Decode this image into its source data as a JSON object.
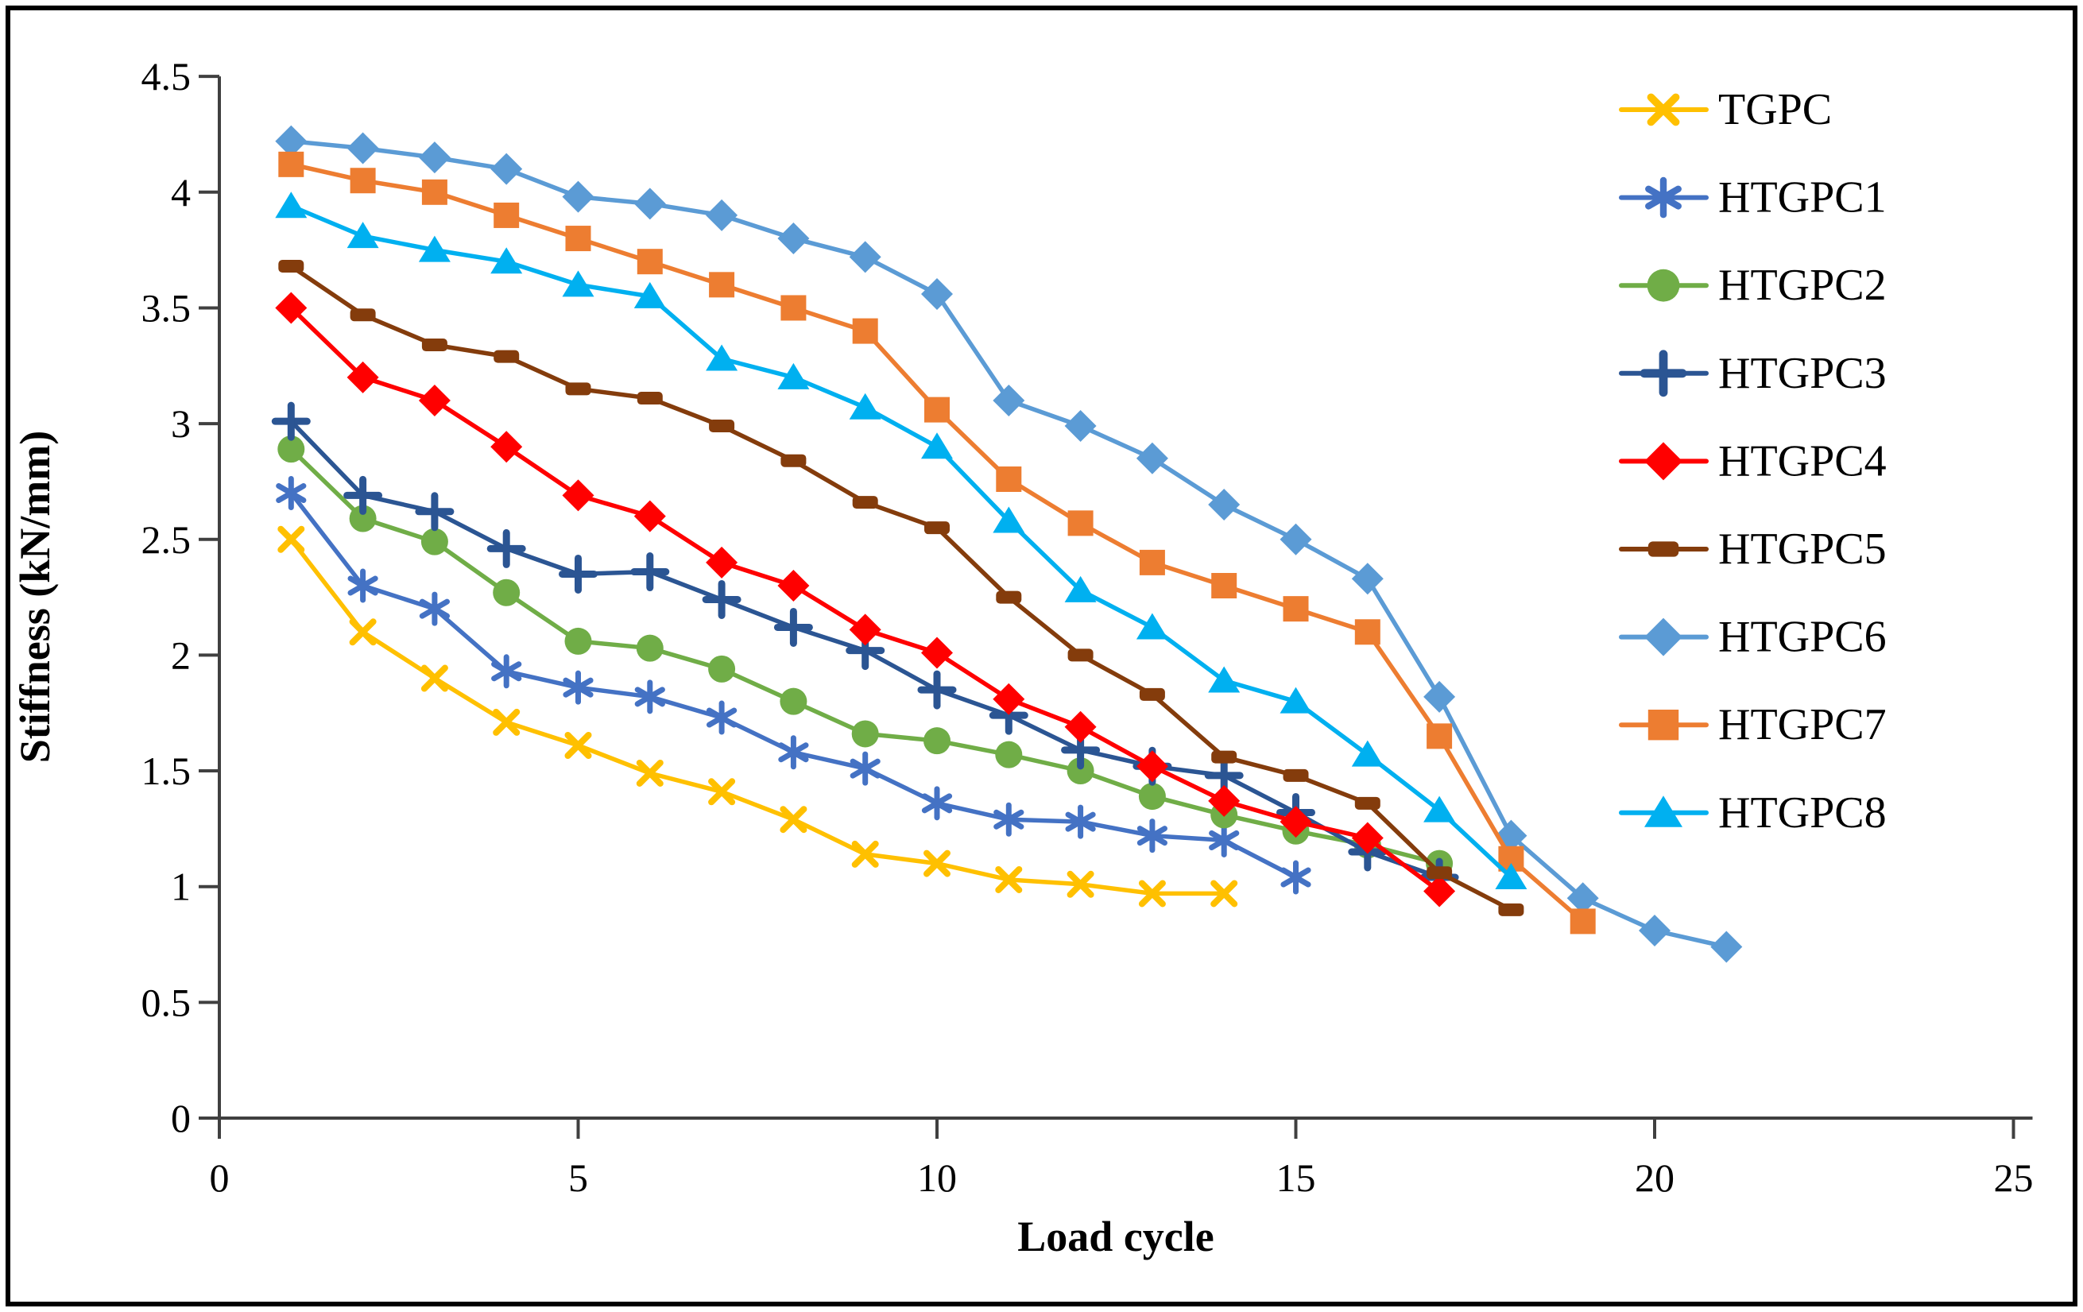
{
  "figure": {
    "background_color": "#ffffff",
    "border_color": "#000000",
    "axis_color": "#404040"
  },
  "chart_data": {
    "type": "line",
    "title": "",
    "xlabel": "Load cycle",
    "ylabel": "Stiffness (kN/mm)",
    "xlim": [
      0,
      25
    ],
    "ylim": [
      0,
      4.5
    ],
    "xticks": [
      0,
      5,
      10,
      15,
      20,
      25
    ],
    "xtick_labels": [
      "0",
      "5",
      "10",
      "15",
      "20",
      "25"
    ],
    "yticks": [
      0,
      0.5,
      1,
      1.5,
      2,
      2.5,
      3,
      3.5,
      4,
      4.5
    ],
    "ytick_labels": [
      "0",
      "0.5",
      "1",
      "1.5",
      "2",
      "2.5",
      "3",
      "3.5",
      "4",
      "4.5"
    ],
    "grid": false,
    "legend_position": "right",
    "series": [
      {
        "name": "TGPC",
        "color": "#FFC000",
        "marker": "x",
        "x": [
          1,
          2,
          3,
          4,
          5,
          6,
          7,
          8,
          9,
          10,
          11,
          12,
          13,
          14
        ],
        "y": [
          2.5,
          2.1,
          1.9,
          1.71,
          1.61,
          1.49,
          1.41,
          1.29,
          1.14,
          1.1,
          1.03,
          1.01,
          0.97,
          0.97
        ]
      },
      {
        "name": "HTGPC1",
        "color": "#4472C4",
        "marker": "asterisk",
        "x": [
          1,
          2,
          3,
          4,
          5,
          6,
          7,
          8,
          9,
          10,
          11,
          12,
          13,
          14,
          15
        ],
        "y": [
          2.7,
          2.3,
          2.2,
          1.93,
          1.86,
          1.82,
          1.73,
          1.58,
          1.51,
          1.36,
          1.29,
          1.28,
          1.22,
          1.2,
          1.04
        ]
      },
      {
        "name": "HTGPC2",
        "color": "#70AD47",
        "marker": "circle",
        "x": [
          1,
          2,
          3,
          4,
          5,
          6,
          7,
          8,
          9,
          10,
          11,
          12,
          13,
          14,
          15,
          16,
          17
        ],
        "y": [
          2.89,
          2.59,
          2.49,
          2.27,
          2.06,
          2.03,
          1.94,
          1.8,
          1.66,
          1.63,
          1.57,
          1.5,
          1.39,
          1.31,
          1.24,
          1.18,
          1.1
        ]
      },
      {
        "name": "HTGPC3",
        "color": "#2B5593",
        "marker": "plus",
        "x": [
          1,
          2,
          3,
          4,
          5,
          6,
          7,
          8,
          9,
          10,
          11,
          12,
          13,
          14,
          15,
          16,
          17
        ],
        "y": [
          3.01,
          2.69,
          2.62,
          2.46,
          2.35,
          2.36,
          2.24,
          2.12,
          2.02,
          1.85,
          1.74,
          1.59,
          1.52,
          1.48,
          1.32,
          1.15,
          1.04
        ]
      },
      {
        "name": "HTGPC4",
        "color": "#FF0000",
        "marker": "diamond",
        "x": [
          1,
          2,
          3,
          4,
          5,
          6,
          7,
          8,
          9,
          10,
          11,
          12,
          13,
          14,
          15,
          16,
          17
        ],
        "y": [
          3.5,
          3.2,
          3.1,
          2.9,
          2.69,
          2.6,
          2.4,
          2.3,
          2.11,
          2.01,
          1.81,
          1.69,
          1.52,
          1.37,
          1.28,
          1.21,
          0.98
        ]
      },
      {
        "name": "HTGPC5",
        "color": "#843C0C",
        "marker": "bar",
        "x": [
          1,
          2,
          3,
          4,
          5,
          6,
          7,
          8,
          9,
          10,
          11,
          12,
          13,
          14,
          15,
          16,
          17,
          18
        ],
        "y": [
          3.68,
          3.47,
          3.34,
          3.29,
          3.15,
          3.11,
          2.99,
          2.84,
          2.66,
          2.55,
          2.25,
          2.0,
          1.83,
          1.56,
          1.48,
          1.36,
          1.06,
          0.9
        ]
      },
      {
        "name": "HTGPC6",
        "color": "#5B9BD5",
        "marker": "diamond",
        "x": [
          1,
          2,
          3,
          4,
          5,
          6,
          7,
          8,
          9,
          10,
          11,
          12,
          13,
          14,
          15,
          16,
          17,
          18,
          19,
          20,
          21
        ],
        "y": [
          4.22,
          4.19,
          4.15,
          4.1,
          3.98,
          3.95,
          3.9,
          3.8,
          3.72,
          3.56,
          3.1,
          2.99,
          2.85,
          2.65,
          2.5,
          2.33,
          1.82,
          1.22,
          0.95,
          0.81,
          0.74
        ]
      },
      {
        "name": "HTGPC7",
        "color": "#ED7D31",
        "marker": "square",
        "x": [
          1,
          2,
          3,
          4,
          5,
          6,
          7,
          8,
          9,
          10,
          11,
          12,
          13,
          14,
          15,
          16,
          17,
          18,
          19
        ],
        "y": [
          4.12,
          4.05,
          4.0,
          3.9,
          3.8,
          3.7,
          3.6,
          3.5,
          3.4,
          3.06,
          2.76,
          2.57,
          2.4,
          2.3,
          2.2,
          2.1,
          1.65,
          1.12,
          0.85
        ]
      },
      {
        "name": "HTGPC8",
        "color": "#00B0F0",
        "marker": "triangle",
        "x": [
          1,
          2,
          3,
          4,
          5,
          6,
          7,
          8,
          9,
          10,
          11,
          12,
          13,
          14,
          15,
          16,
          17,
          18
        ],
        "y": [
          3.94,
          3.81,
          3.75,
          3.7,
          3.6,
          3.55,
          3.28,
          3.2,
          3.07,
          2.9,
          2.58,
          2.28,
          2.12,
          1.89,
          1.8,
          1.57,
          1.33,
          1.04
        ]
      }
    ]
  }
}
